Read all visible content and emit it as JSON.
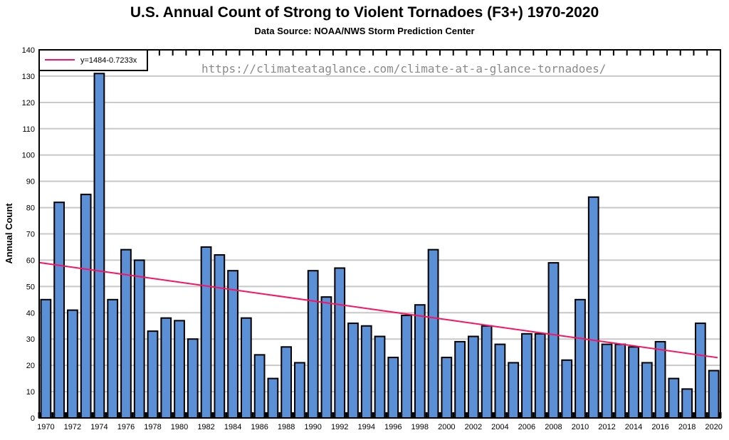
{
  "chart_data": {
    "type": "bar",
    "title": "U.S. Annual Count of Strong to Violent Tornadoes (F3+) 1970-2020",
    "subtitle": "Data Source: NOAA/NWS Storm Prediction Center",
    "watermark": "https://climateataglance.com/climate-at-a-glance-tornadoes/",
    "xlabel": "",
    "ylabel": "Annual Count",
    "ylim": [
      0,
      140
    ],
    "yticks": [
      0,
      10,
      20,
      30,
      40,
      50,
      60,
      70,
      80,
      90,
      100,
      110,
      120,
      130,
      140
    ],
    "grid": true,
    "legend_position": "top-left",
    "categories": [
      1970,
      1971,
      1972,
      1973,
      1974,
      1975,
      1976,
      1977,
      1978,
      1979,
      1980,
      1981,
      1982,
      1983,
      1984,
      1985,
      1986,
      1987,
      1988,
      1989,
      1990,
      1991,
      1992,
      1993,
      1994,
      1995,
      1996,
      1997,
      1998,
      1999,
      2000,
      2001,
      2002,
      2003,
      2004,
      2005,
      2006,
      2007,
      2008,
      2009,
      2010,
      2011,
      2012,
      2013,
      2014,
      2015,
      2016,
      2017,
      2018,
      2019,
      2020
    ],
    "xtick_labels": [
      "1970",
      "1972",
      "1974",
      "1976",
      "1978",
      "1980",
      "1982",
      "1984",
      "1986",
      "1988",
      "1990",
      "1992",
      "1994",
      "1996",
      "1998",
      "2000",
      "2002",
      "2004",
      "2006",
      "2008",
      "2010",
      "2012",
      "2014",
      "2016",
      "2018",
      "2020"
    ],
    "values": [
      45,
      82,
      41,
      85,
      131,
      45,
      64,
      60,
      33,
      38,
      37,
      30,
      65,
      62,
      56,
      38,
      24,
      15,
      27,
      21,
      56,
      46,
      57,
      36,
      35,
      31,
      23,
      39,
      43,
      64,
      23,
      29,
      31,
      35,
      28,
      21,
      32,
      32,
      59,
      22,
      45,
      84,
      28,
      28,
      27,
      21,
      29,
      15,
      11,
      36,
      18
    ],
    "trendline": {
      "name": "y=1484-0.7233x",
      "intercept": 1484,
      "slope": -0.7233
    },
    "colors": {
      "bar": "#5b8fd6",
      "bar_edge": "#000000",
      "trend": "#ff1060",
      "grid": "#c8c8c8",
      "watermark": "#8a8a8a"
    }
  }
}
